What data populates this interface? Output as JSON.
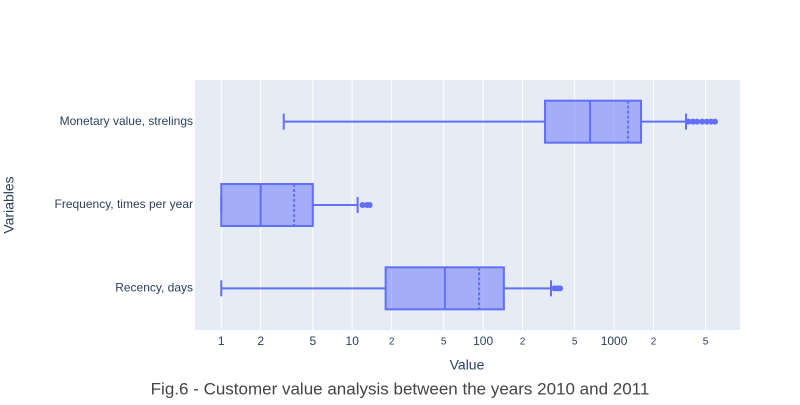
{
  "chart_data": {
    "type": "box",
    "title": "Fig.6 - Customer value analysis between the years 2010 and 2011",
    "x_label": "Value",
    "y_label": "Variables",
    "xlog": true,
    "grid": true,
    "color": "#636efa",
    "xlim": [
      0.63,
      9160
    ],
    "xticks": [
      1,
      2,
      5,
      10,
      {
        "value": 20,
        "label": "2"
      },
      {
        "value": 50,
        "label": "5"
      },
      100,
      {
        "value": 200,
        "label": "2"
      },
      {
        "value": 500,
        "label": "5"
      },
      1000,
      {
        "value": 2000,
        "label": "2"
      },
      {
        "value": 5000,
        "label": "5"
      }
    ],
    "categories": [
      "Recency, days",
      "Frequency, times per year",
      "Monetary value, strelings"
    ],
    "boxes": [
      {
        "min": 1,
        "q1": 18,
        "median": 51,
        "mean": 93,
        "q3": 144,
        "max": 330,
        "outliers": [
          350,
          370,
          387
        ]
      },
      {
        "min": 1,
        "q1": 1,
        "median": 2,
        "mean": 3.6,
        "q3": 5,
        "max": 11,
        "outliers": [
          12,
          13,
          13.6
        ]
      },
      {
        "min": 3,
        "q1": 297,
        "median": 656,
        "mean": 1280,
        "q3": 1607,
        "max": 3545,
        "outliers": [
          3700,
          4000,
          4300,
          4700,
          5100,
          5500,
          5900
        ]
      }
    ]
  }
}
